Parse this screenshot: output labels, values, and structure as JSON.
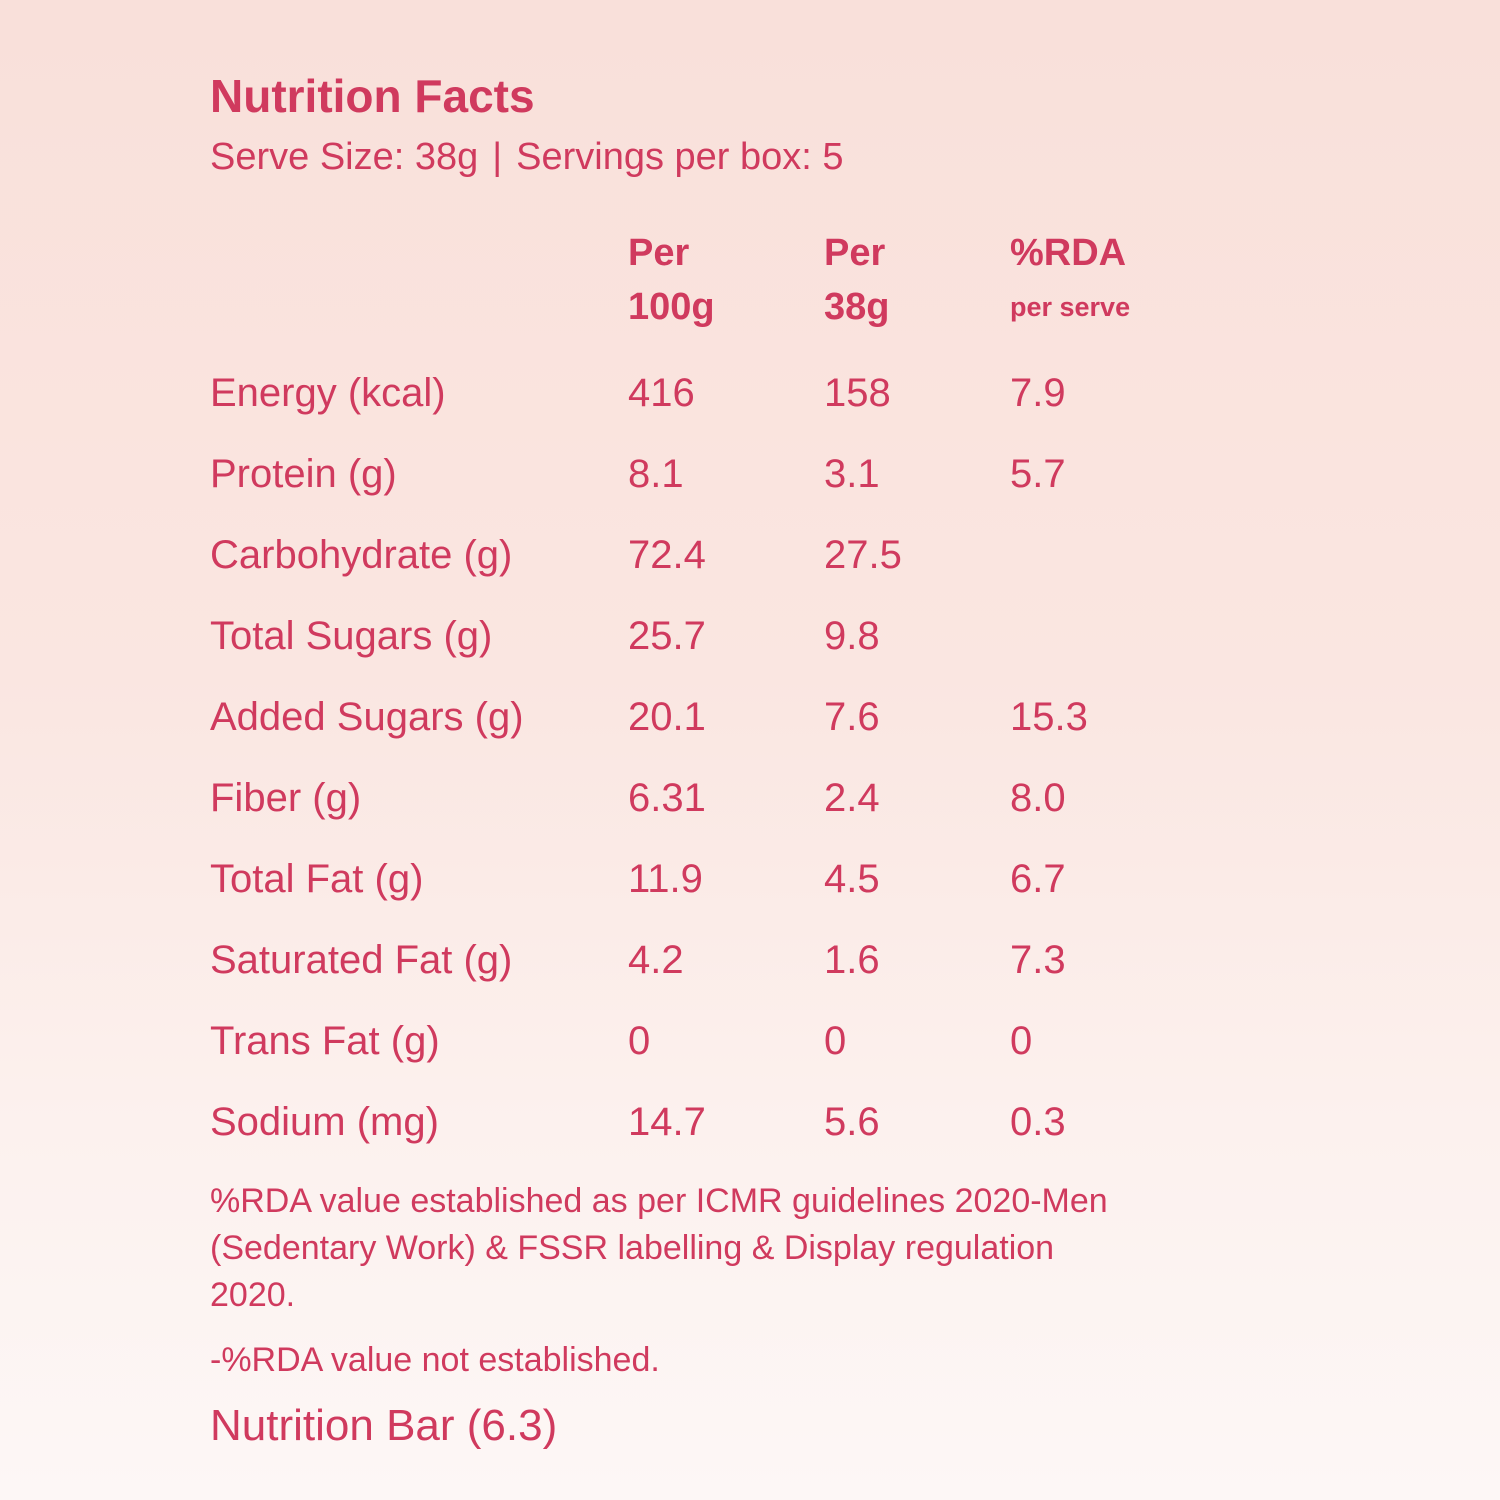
{
  "header": {
    "title": "Nutrition Facts",
    "serve_size": "Serve Size: 38g",
    "separator": "|",
    "servings": "Servings per box: 5"
  },
  "columns": [
    {
      "line1": "Per",
      "line2": "100g"
    },
    {
      "line1": "Per",
      "line2": "38g"
    },
    {
      "line1": "%RDA",
      "line2": "per serve"
    }
  ],
  "rows": [
    {
      "label": "Energy (kcal)",
      "per100": "416",
      "perServe": "158",
      "rda": "7.9"
    },
    {
      "label": "Protein (g)",
      "per100": "8.1",
      "perServe": "3.1",
      "rda": "5.7"
    },
    {
      "label": "Carbohydrate (g)",
      "per100": "72.4",
      "perServe": "27.5",
      "rda": ""
    },
    {
      "label": "Total Sugars (g)",
      "per100": "25.7",
      "perServe": "9.8",
      "rda": ""
    },
    {
      "label": "Added Sugars (g)",
      "per100": "20.1",
      "perServe": "7.6",
      "rda": "15.3"
    },
    {
      "label": "Fiber (g)",
      "per100": "6.31",
      "perServe": "2.4",
      "rda": "8.0"
    },
    {
      "label": "Total Fat (g)",
      "per100": "11.9",
      "perServe": "4.5",
      "rda": "6.7"
    },
    {
      "label": "Saturated Fat (g)",
      "per100": "4.2",
      "perServe": "1.6",
      "rda": "7.3"
    },
    {
      "label": "Trans Fat (g)",
      "per100": "0",
      "perServe": "0",
      "rda": "0"
    },
    {
      "label": "Sodium (mg)",
      "per100": "14.7",
      "perServe": "5.6",
      "rda": "0.3"
    }
  ],
  "footnotes": {
    "note": "%RDA value established as per ICMR guidelines 2020-Men (Sedentary Work) & FSSR labelling & Display regulation 2020.",
    "not_established": "-%RDA value not established.",
    "product": "Nutrition Bar (6.3)"
  },
  "colors": {
    "text": "#d03a5e",
    "background_top": "#f9e0da",
    "background_bottom": "#fdf7f6"
  }
}
